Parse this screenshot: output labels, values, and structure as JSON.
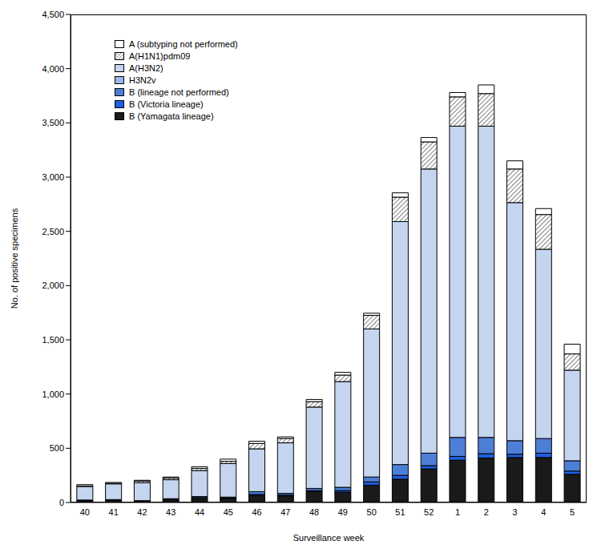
{
  "chart_data": {
    "type": "bar",
    "stacked": true,
    "grid": false,
    "legend": "upper left",
    "x_label": "Surveillance week",
    "y_label": "No. of positive specimens",
    "categories": [
      "40",
      "41",
      "42",
      "43",
      "44",
      "45",
      "46",
      "47",
      "48",
      "49",
      "50",
      "51",
      "52",
      "1",
      "2",
      "3",
      "4",
      "5"
    ],
    "ylim": [
      0,
      4500
    ],
    "yticks": [
      0,
      500,
      {
        "value": 1000,
        "label": "1,000"
      },
      {
        "value": 1500,
        "label": "1,500"
      },
      {
        "value": 2000,
        "label": "2,000"
      },
      {
        "value": 2500,
        "label": "2,500"
      },
      {
        "value": 3000,
        "label": "3,000"
      },
      {
        "value": 3500,
        "label": "3,500"
      },
      {
        "value": 4000,
        "label": "4,000"
      },
      {
        "value": 4500,
        "label": "4,500"
      }
    ],
    "series": [
      {
        "name": "B (Yamagata lineage)",
        "color": "#1a1a1a",
        "values": [
          15,
          20,
          10,
          25,
          40,
          35,
          65,
          60,
          100,
          95,
          160,
          215,
          310,
          390,
          410,
          415,
          415,
          260
        ]
      },
      {
        "name": "B (Victoria lineage)",
        "color": "#1f5fe0",
        "values": [
          3,
          2,
          2,
          3,
          5,
          5,
          10,
          10,
          10,
          15,
          30,
          35,
          30,
          35,
          40,
          30,
          40,
          30
        ]
      },
      {
        "name": "B (lineage not performed)",
        "color": "#4d7fd6",
        "values": [
          5,
          5,
          5,
          7,
          10,
          10,
          25,
          15,
          20,
          30,
          45,
          100,
          115,
          175,
          150,
          125,
          135,
          95
        ]
      },
      {
        "name": "H3N2v",
        "color": "#9db6e5",
        "values": [
          0,
          0,
          0,
          0,
          0,
          0,
          0,
          0,
          0,
          0,
          0,
          0,
          0,
          0,
          0,
          0,
          0,
          0
        ]
      },
      {
        "name": "A(H3N2)",
        "color": "#c5d5f0",
        "values": [
          125,
          145,
          165,
          175,
          240,
          310,
          395,
          465,
          750,
          975,
          1365,
          2240,
          2620,
          2870,
          2870,
          2195,
          1745,
          835
        ]
      },
      {
        "name": "A(H1N1)pdm09",
        "color": "#555555",
        "line_style": "hatched",
        "values": [
          5,
          5,
          15,
          15,
          20,
          20,
          50,
          40,
          50,
          60,
          125,
          225,
          250,
          270,
          300,
          310,
          320,
          150
        ]
      },
      {
        "name": "A (subtyping not performed)",
        "color": "#ffffff",
        "values": [
          12,
          8,
          8,
          10,
          15,
          20,
          20,
          15,
          20,
          25,
          20,
          40,
          40,
          40,
          80,
          75,
          55,
          90
        ]
      }
    ]
  }
}
